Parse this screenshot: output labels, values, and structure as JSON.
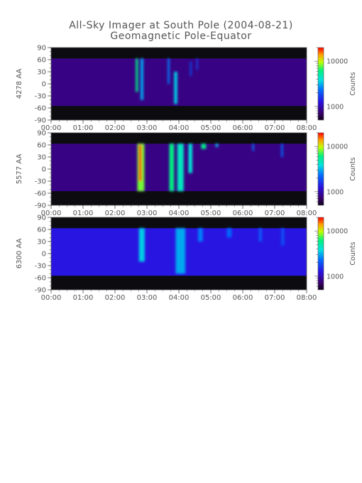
{
  "title": "All-Sky Imager at South Pole (2004-08-21)",
  "subtitle": "Geomagnetic Pole-Equator",
  "chart_data": [
    {
      "type": "heatmap",
      "ylabel": "4278 AA",
      "x_ticks": [
        "00:00",
        "01:00",
        "02:00",
        "03:00",
        "04:00",
        "05:00",
        "06:00",
        "07:00",
        "08:00"
      ],
      "y_ticks": [
        90,
        60,
        30,
        0,
        -30,
        -60,
        -90
      ],
      "xlim": [
        "00:00",
        "08:00"
      ],
      "ylim": [
        -90,
        90
      ],
      "valid_lat_range": [
        -55,
        63
      ],
      "colorbar": {
        "label": "Counts",
        "ticks": [
          "10000",
          "1000"
        ],
        "scale": "log",
        "range": [
          500,
          20000
        ]
      },
      "bands": [
        {
          "t": 2.65,
          "w": 0.07,
          "lat_top": 63,
          "lat_bottom": -20,
          "value": 6000
        },
        {
          "t": 2.8,
          "w": 0.09,
          "lat_top": 63,
          "lat_bottom": -40,
          "value": 3000
        },
        {
          "t": 3.65,
          "w": 0.06,
          "lat_top": 63,
          "lat_bottom": 0,
          "value": 2500
        },
        {
          "t": 3.85,
          "w": 0.1,
          "lat_top": 30,
          "lat_bottom": -50,
          "value": 3500
        },
        {
          "t": 4.35,
          "w": 0.04,
          "lat_top": 55,
          "lat_bottom": 20,
          "value": 2000
        },
        {
          "t": 4.55,
          "w": 0.04,
          "lat_top": 63,
          "lat_bottom": 35,
          "value": 1800
        }
      ]
    },
    {
      "type": "heatmap",
      "ylabel": "5577 AA",
      "x_ticks": [
        "00:00",
        "01:00",
        "02:00",
        "03:00",
        "04:00",
        "05:00",
        "06:00",
        "07:00",
        "08:00"
      ],
      "y_ticks": [
        90,
        60,
        30,
        0,
        -30,
        -60,
        -90
      ],
      "xlim": [
        "00:00",
        "08:00"
      ],
      "ylim": [
        -90,
        90
      ],
      "valid_lat_range": [
        -55,
        63
      ],
      "colorbar": {
        "label": "Counts",
        "ticks": [
          "10000",
          "1000"
        ],
        "scale": "log",
        "range": [
          500,
          20000
        ]
      },
      "bands": [
        {
          "t": 2.7,
          "w": 0.22,
          "lat_top": 63,
          "lat_bottom": -55,
          "value": 8000
        },
        {
          "t": 2.75,
          "w": 0.08,
          "lat_top": 60,
          "lat_bottom": -30,
          "value": 18000
        },
        {
          "t": 3.7,
          "w": 0.15,
          "lat_top": 63,
          "lat_bottom": -55,
          "value": 6000
        },
        {
          "t": 3.95,
          "w": 0.2,
          "lat_top": 63,
          "lat_bottom": -55,
          "value": 4500
        },
        {
          "t": 4.3,
          "w": 0.12,
          "lat_top": 63,
          "lat_bottom": -10,
          "value": 4000
        },
        {
          "t": 4.7,
          "w": 0.15,
          "lat_top": 63,
          "lat_bottom": 50,
          "value": 6000
        },
        {
          "t": 5.15,
          "w": 0.08,
          "lat_top": 63,
          "lat_bottom": 55,
          "value": 3500
        },
        {
          "t": 6.3,
          "w": 0.05,
          "lat_top": 63,
          "lat_bottom": 45,
          "value": 2500
        },
        {
          "t": 7.2,
          "w": 0.06,
          "lat_top": 63,
          "lat_bottom": 30,
          "value": 2200
        }
      ]
    },
    {
      "type": "heatmap",
      "ylabel": "6300 AA",
      "x_ticks": [
        "00:00",
        "01:00",
        "02:00",
        "03:00",
        "04:00",
        "05:00",
        "06:00",
        "07:00",
        "08:00"
      ],
      "y_ticks": [
        90,
        60,
        30,
        0,
        -30,
        -60,
        -90
      ],
      "xlim": [
        "00:00",
        "08:00"
      ],
      "ylim": [
        -90,
        90
      ],
      "valid_lat_range": [
        -55,
        63
      ],
      "colorbar": {
        "label": "Counts",
        "ticks": [
          "10000",
          "1000"
        ],
        "scale": "log",
        "range": [
          500,
          20000
        ]
      },
      "bands": [
        {
          "t": 2.75,
          "w": 0.18,
          "lat_top": 63,
          "lat_bottom": -20,
          "value": 3500
        },
        {
          "t": 3.9,
          "w": 0.3,
          "lat_top": 63,
          "lat_bottom": -50,
          "value": 3000
        },
        {
          "t": 4.6,
          "w": 0.15,
          "lat_top": 63,
          "lat_bottom": 30,
          "value": 2500
        },
        {
          "t": 5.5,
          "w": 0.15,
          "lat_top": 63,
          "lat_bottom": 40,
          "value": 2200
        },
        {
          "t": 6.5,
          "w": 0.1,
          "lat_top": 63,
          "lat_bottom": 30,
          "value": 2000
        },
        {
          "t": 7.2,
          "w": 0.1,
          "lat_top": 63,
          "lat_bottom": 20,
          "value": 1900
        }
      ]
    }
  ]
}
